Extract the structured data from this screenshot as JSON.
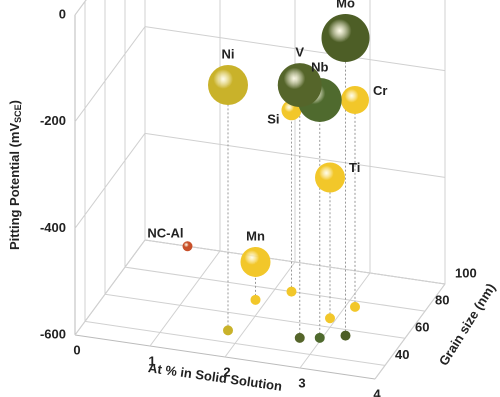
{
  "chart_data": {
    "type": "bubble3d",
    "xlabel": "At % in Solid Solution",
    "ylabel": "Grain size (nm)",
    "zlabel": {
      "main": "Pitting Potential (mV",
      "sub": "SCE",
      "end": ")"
    },
    "xlim": [
      0,
      4
    ],
    "xticks": [
      0,
      1,
      2,
      3,
      4
    ],
    "ylim": [
      30,
      100
    ],
    "yticks": [
      40,
      60,
      80,
      100
    ],
    "zlim": [
      -600,
      0
    ],
    "zticks": [
      0,
      -200,
      -400,
      -600
    ],
    "grid": true,
    "points": [
      {
        "label": "NC-Al",
        "x": 1.3,
        "y": 45,
        "z": -445,
        "size": 5,
        "color": "#c8502a",
        "shadow": false
      },
      {
        "label": "Mn",
        "x": 1.86,
        "y": 71,
        "z": -529,
        "size": 15,
        "color": "#f2c72a",
        "shadow": true
      },
      {
        "label": "Ni",
        "x": 1.8,
        "y": 48,
        "z": -140,
        "size": 20,
        "color": "#c9b22a",
        "shadow": true
      },
      {
        "label": "Si",
        "x": 2.22,
        "y": 80,
        "z": -260,
        "size": 10,
        "color": "#f2c72a",
        "shadow": true
      },
      {
        "label": "V",
        "x": 2.73,
        "y": 50,
        "z": -126,
        "size": 22,
        "color": "#55652a",
        "shadow": true
      },
      {
        "label": "Nb",
        "x": 2.97,
        "y": 52,
        "z": -154,
        "size": 22,
        "color": "#4f6a2e",
        "shadow": true
      },
      {
        "label": "Ti",
        "x": 2.92,
        "y": 66,
        "z": -336,
        "size": 15,
        "color": "#f2c72a",
        "shadow": true
      },
      {
        "label": "Cr",
        "x": 3.12,
        "y": 76,
        "z": -212,
        "size": 14,
        "color": "#f2c72a",
        "shadow": true
      },
      {
        "label": "Mo",
        "x": 3.26,
        "y": 56,
        "z": -42,
        "size": 24,
        "color": "#4d5e26",
        "shadow": true
      }
    ]
  }
}
